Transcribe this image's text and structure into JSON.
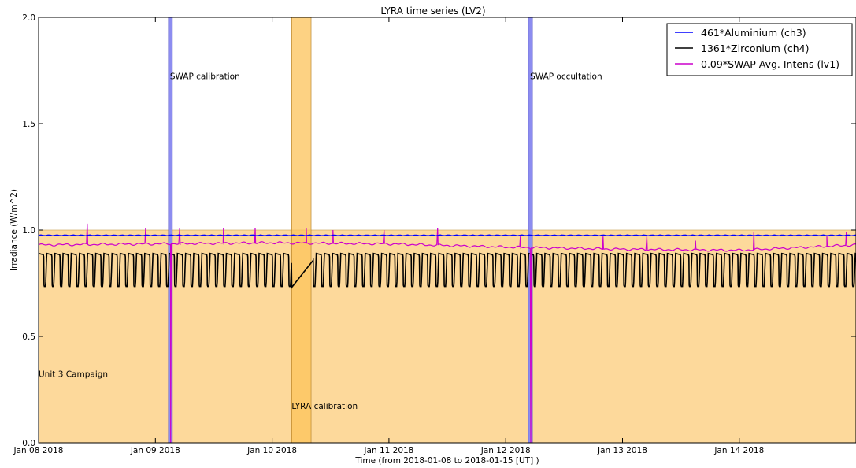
{
  "chart_data": {
    "type": "line",
    "title": "LYRA time series (LV2)",
    "xlabel": "Time (from 2018-01-08 to 2018-01-15 [UT] )",
    "ylabel": "Irradiance (W/m^2)",
    "xlim": [
      "2018-01-08 00:00",
      "2018-01-15 00:00"
    ],
    "ylim": [
      0,
      2.0
    ],
    "yticks": [
      0.0,
      0.5,
      1.0,
      1.5,
      2.0
    ],
    "ytick_labels": [
      "0.0",
      "0.5",
      "1.0",
      "1.5",
      "2.0"
    ],
    "xticks": [
      "2018-01-08",
      "2018-01-09",
      "2018-01-10",
      "2018-01-11",
      "2018-01-12",
      "2018-01-13",
      "2018-01-14"
    ],
    "xtick_labels": [
      "Jan 08 2018",
      "Jan 09 2018",
      "Jan 10 2018",
      "Jan 11 2018",
      "Jan 12 2018",
      "Jan 13 2018",
      "Jan 14 2018"
    ],
    "grid": false,
    "legend": "top-right",
    "colors": {
      "campaign": "#fdd99b",
      "lyra_calibration": "#fcc35a",
      "swap_band": "#8c8cf0",
      "ch3": "#0000ff",
      "ch4": "#000000",
      "swap": "#cc00cc"
    },
    "series": [
      {
        "name": "461*Aluminium (ch3)",
        "color": "#0000ff",
        "baseline": 0.975,
        "points": [
          [
            "2018-01-08 00:00",
            0.98
          ],
          [
            "2018-01-10 00:00",
            0.975
          ],
          [
            "2018-01-12 00:00",
            0.975
          ],
          [
            "2018-01-15 00:00",
            0.975
          ]
        ]
      },
      {
        "name": "1361*Zirconium (ch4)",
        "color": "#000000",
        "oscillation": {
          "min": 0.73,
          "max": 0.89,
          "orbits_per_day": 14.3
        },
        "gap": {
          "from": "2018-01-10 04:00",
          "to": "2018-01-10 08:30",
          "start_value": 0.73,
          "end_value": 0.86
        }
      },
      {
        "name": "0.09*SWAP Avg. Intens (lv1)",
        "color": "#cc00cc",
        "points": [
          [
            "2018-01-08 00:00",
            0.93
          ],
          [
            "2018-01-09 00:00",
            0.935
          ],
          [
            "2018-01-10 00:00",
            0.94
          ],
          [
            "2018-01-11 00:00",
            0.935
          ],
          [
            "2018-01-12 00:00",
            0.92
          ],
          [
            "2018-01-13 00:00",
            0.91
          ],
          [
            "2018-01-14 00:00",
            0.905
          ],
          [
            "2018-01-15 00:00",
            0.93
          ]
        ],
        "spikes": [
          [
            "2018-01-08 10:00",
            1.03
          ],
          [
            "2018-01-08 22:00",
            1.01
          ],
          [
            "2018-01-09 05:00",
            1.01
          ],
          [
            "2018-01-09 14:00",
            1.01
          ],
          [
            "2018-01-09 20:30",
            1.01
          ],
          [
            "2018-01-10 07:00",
            1.01
          ],
          [
            "2018-01-10 12:30",
            1.0
          ],
          [
            "2018-01-10 23:00",
            1.0
          ],
          [
            "2018-01-11 10:00",
            1.01
          ],
          [
            "2018-01-12 03:00",
            0.97
          ],
          [
            "2018-01-12 20:00",
            0.97
          ],
          [
            "2018-01-13 05:00",
            0.97
          ],
          [
            "2018-01-13 15:00",
            0.95
          ],
          [
            "2018-01-14 03:00",
            0.99
          ],
          [
            "2018-01-14 18:00",
            0.97
          ],
          [
            "2018-01-14 22:00",
            0.99
          ]
        ]
      }
    ],
    "annotations": [
      {
        "text": "Unit 3 Campaign",
        "x": "2018-01-08 00:00",
        "y": 0.31
      },
      {
        "text": "SWAP calibration",
        "x": "2018-01-09 03:00",
        "y": 1.71
      },
      {
        "text": "LYRA calibration",
        "x": "2018-01-10 04:00",
        "y": 0.16
      },
      {
        "text": "SWAP occultation",
        "x": "2018-01-12 05:00",
        "y": 1.71
      }
    ],
    "bands": [
      {
        "label": "Unit 3 Campaign",
        "type": "campaign",
        "x0": "2018-01-08 00:00",
        "x1": "2018-01-15 00:00",
        "y1": 1.0
      },
      {
        "label": "SWAP calibration",
        "type": "swap",
        "x0": "2018-01-09 02:40",
        "x1": "2018-01-09 03:30"
      },
      {
        "label": "LYRA calibration",
        "type": "lyra",
        "x0": "2018-01-10 04:00",
        "x1": "2018-01-10 08:00"
      },
      {
        "label": "SWAP occultation",
        "type": "swap",
        "x0": "2018-01-12 04:40",
        "x1": "2018-01-12 05:30"
      }
    ]
  }
}
